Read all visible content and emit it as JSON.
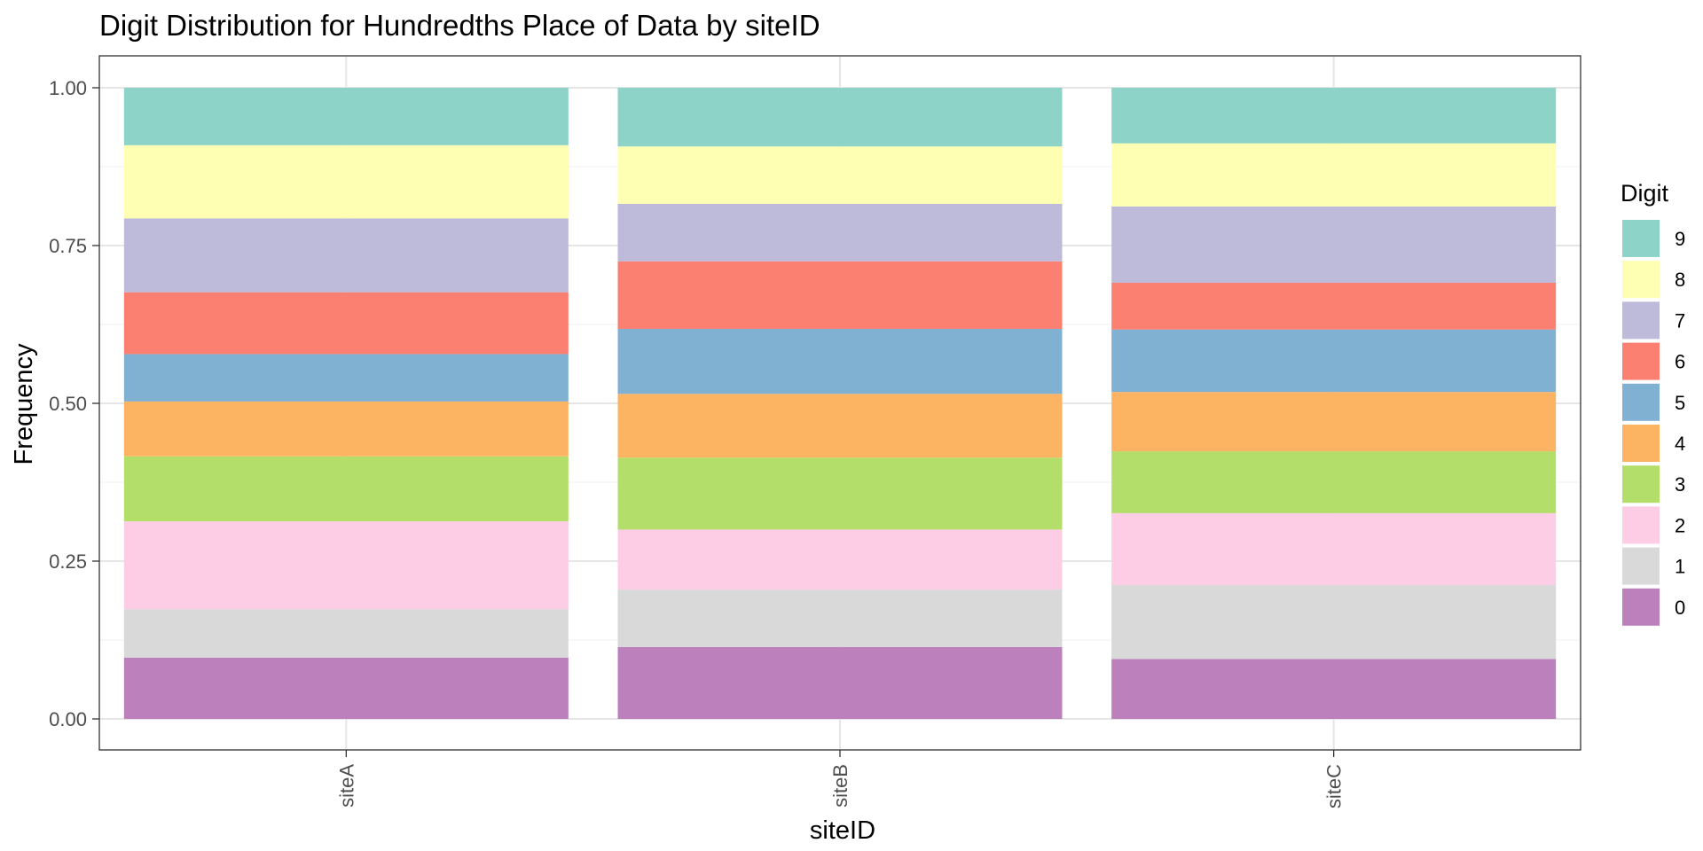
{
  "chart_data": {
    "type": "bar",
    "stacked": true,
    "title": "Digit Distribution for Hundredths Place of Data by siteID",
    "xlabel": "siteID",
    "ylabel": "Frequency",
    "ylim": [
      0,
      1
    ],
    "yticks": [
      "0.00",
      "0.25",
      "0.50",
      "0.75",
      "1.00"
    ],
    "categories": [
      "siteA",
      "siteB",
      "siteC"
    ],
    "legend": {
      "title": "Digit",
      "placement": "right"
    },
    "grid": true,
    "series": [
      {
        "name": "0",
        "color": "#BC80BD",
        "values": [
          0.097,
          0.114,
          0.095
        ]
      },
      {
        "name": "1",
        "color": "#D9D9D9",
        "values": [
          0.077,
          0.091,
          0.117
        ]
      },
      {
        "name": "2",
        "color": "#FCCDE5",
        "values": [
          0.139,
          0.095,
          0.114
        ]
      },
      {
        "name": "3",
        "color": "#B3DE69",
        "values": [
          0.103,
          0.114,
          0.098
        ]
      },
      {
        "name": "4",
        "color": "#FDB462",
        "values": [
          0.087,
          0.101,
          0.094
        ]
      },
      {
        "name": "5",
        "color": "#80B1D3",
        "values": [
          0.075,
          0.103,
          0.099
        ]
      },
      {
        "name": "6",
        "color": "#FB8072",
        "values": [
          0.098,
          0.107,
          0.074
        ]
      },
      {
        "name": "7",
        "color": "#BEBADA",
        "values": [
          0.117,
          0.091,
          0.121
        ]
      },
      {
        "name": "8",
        "color": "#FFFFB3",
        "values": [
          0.116,
          0.091,
          0.1
        ]
      },
      {
        "name": "9",
        "color": "#8DD3C7",
        "values": [
          0.091,
          0.093,
          0.088
        ]
      }
    ]
  }
}
